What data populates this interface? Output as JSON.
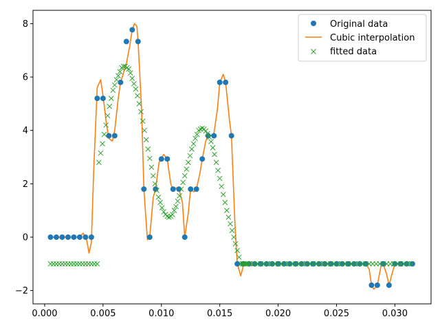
{
  "chart_data": {
    "type": "scatter",
    "title": "",
    "xlabel": "",
    "ylabel": "",
    "xlim": [
      -0.001,
      0.0331
    ],
    "ylim": [
      -2.5,
      8.5
    ],
    "xticks": [
      0.0,
      0.005,
      0.01,
      0.015,
      0.02,
      0.025,
      0.03
    ],
    "xtick_labels": [
      "0.000",
      "0.005",
      "0.010",
      "0.015",
      "0.020",
      "0.025",
      "0.030"
    ],
    "yticks": [
      -2,
      0,
      2,
      4,
      6,
      8
    ],
    "ytick_labels": [
      "−2",
      "0",
      "2",
      "4",
      "6",
      "8"
    ],
    "grid": false,
    "legend_position": "top-right",
    "colors": {
      "original": "#1f77b4",
      "interp": "#ff7f0e",
      "fitted": "#2ca02c"
    },
    "series": [
      {
        "name": "Original data",
        "marker": "circle",
        "x": [
          0.0005,
          0.001,
          0.0015,
          0.002,
          0.0025,
          0.003,
          0.0035,
          0.004,
          0.0045,
          0.005,
          0.0055,
          0.006,
          0.0065,
          0.007,
          0.0075,
          0.008,
          0.0085,
          0.009,
          0.0095,
          0.01,
          0.0105,
          0.011,
          0.0115,
          0.012,
          0.0125,
          0.013,
          0.0135,
          0.014,
          0.0145,
          0.015,
          0.0155,
          0.016,
          0.0165,
          0.017,
          0.0175,
          0.018,
          0.0185,
          0.019,
          0.0195,
          0.02,
          0.0205,
          0.021,
          0.0215,
          0.022,
          0.0225,
          0.023,
          0.0235,
          0.024,
          0.0245,
          0.025,
          0.0255,
          0.026,
          0.0265,
          0.027,
          0.0275,
          0.028,
          0.0285,
          0.029,
          0.0295,
          0.03,
          0.0305,
          0.031,
          0.0315
        ],
        "y": [
          0,
          0,
          0,
          0,
          0,
          0,
          0,
          0,
          5.2,
          5.2,
          3.8,
          3.8,
          5.8,
          7.33,
          7.77,
          7.33,
          1.8,
          0,
          1.8,
          2.93,
          2.93,
          1.8,
          1.8,
          0,
          1.8,
          1.8,
          2.93,
          3.8,
          3.8,
          5.8,
          5.8,
          3.8,
          -1,
          -1,
          -1,
          -1,
          -1,
          -1,
          -1,
          -1,
          -1,
          -1,
          -1,
          -1,
          -1,
          -1,
          -1,
          -1,
          -1,
          -1,
          -1,
          -1,
          -1,
          -1,
          -1,
          -1.8,
          -1.8,
          -1,
          -1.8,
          -1,
          -1,
          -1,
          -1
        ]
      },
      {
        "name": "Cubic interpolation",
        "marker": "line",
        "x": [
          0.0005,
          0.001,
          0.0015,
          0.002,
          0.0025,
          0.003,
          0.0033,
          0.0036,
          0.0038,
          0.004,
          0.0042,
          0.0045,
          0.0048,
          0.005,
          0.0053,
          0.0055,
          0.0058,
          0.006,
          0.0063,
          0.0065,
          0.007,
          0.0073,
          0.0075,
          0.0077,
          0.0079,
          0.008,
          0.0083,
          0.0085,
          0.0088,
          0.009,
          0.0093,
          0.0095,
          0.0098,
          0.01,
          0.0102,
          0.0105,
          0.0108,
          0.011,
          0.0113,
          0.0115,
          0.0118,
          0.012,
          0.0123,
          0.0125,
          0.0128,
          0.013,
          0.0133,
          0.0135,
          0.0138,
          0.014,
          0.0143,
          0.0145,
          0.0148,
          0.015,
          0.0153,
          0.0155,
          0.0158,
          0.016,
          0.0163,
          0.0165,
          0.0168,
          0.017,
          0.0173,
          0.0175,
          0.018,
          0.0275,
          0.0278,
          0.028,
          0.0282,
          0.0285,
          0.0288,
          0.029,
          0.0293,
          0.0295,
          0.0298,
          0.03,
          0.0315
        ],
        "y": [
          0,
          0,
          0,
          0,
          0,
          0,
          0.15,
          -0.1,
          -0.6,
          -0.2,
          2.5,
          5.6,
          5.9,
          5.3,
          4.2,
          3.7,
          3.6,
          4.0,
          5.2,
          5.8,
          6.5,
          7.2,
          7.77,
          8.0,
          7.9,
          7.33,
          4.8,
          1.8,
          -0.1,
          0.0,
          1.5,
          1.8,
          2.8,
          2.95,
          3.1,
          2.93,
          2.0,
          1.8,
          1.85,
          1.8,
          1.3,
          0.0,
          0.9,
          1.8,
          1.7,
          1.8,
          2.4,
          2.93,
          3.6,
          3.8,
          3.8,
          3.9,
          4.8,
          5.8,
          6.1,
          5.8,
          4.5,
          3.8,
          0.5,
          -1.0,
          -1.45,
          -1.1,
          -0.95,
          -1.0,
          -1.0,
          -1.0,
          -1.2,
          -1.8,
          -1.95,
          -1.8,
          -1.1,
          -1.0,
          -1.4,
          -1.8,
          -1.3,
          -1.0,
          -1.0
        ]
      },
      {
        "name": "fitted data",
        "marker": "x",
        "x": [
          0.0005,
          0.00075,
          0.001,
          0.00125,
          0.0015,
          0.00175,
          0.002,
          0.00225,
          0.0025,
          0.00275,
          0.003,
          0.00325,
          0.0035,
          0.00375,
          0.004,
          0.00425,
          0.0045,
          0.00465,
          0.0048,
          0.00495,
          0.0051,
          0.00525,
          0.0054,
          0.00555,
          0.0057,
          0.00585,
          0.006,
          0.00615,
          0.0063,
          0.00645,
          0.0066,
          0.00675,
          0.0069,
          0.00705,
          0.0072,
          0.00735,
          0.0075,
          0.00765,
          0.0078,
          0.00795,
          0.0081,
          0.00825,
          0.0084,
          0.00855,
          0.0087,
          0.00885,
          0.009,
          0.00915,
          0.0093,
          0.00945,
          0.0096,
          0.00975,
          0.0099,
          0.01005,
          0.0102,
          0.01035,
          0.0105,
          0.01065,
          0.0108,
          0.01095,
          0.0111,
          0.01125,
          0.0114,
          0.01155,
          0.0117,
          0.01185,
          0.012,
          0.01215,
          0.0123,
          0.01245,
          0.0126,
          0.01275,
          0.0129,
          0.01305,
          0.0132,
          0.01335,
          0.0135,
          0.01365,
          0.0138,
          0.01395,
          0.0141,
          0.01425,
          0.0144,
          0.01455,
          0.0147,
          0.01485,
          0.015,
          0.01515,
          0.0153,
          0.01545,
          0.0156,
          0.01575,
          0.0159,
          0.01605,
          0.0162,
          0.01635,
          0.0165,
          0.01665,
          0.0168,
          0.01695,
          0.0171,
          0.01725,
          0.0174,
          0.017,
          0.0173,
          0.0176,
          0.0179,
          0.0182,
          0.0185,
          0.0188,
          0.0191,
          0.0194,
          0.0197,
          0.02,
          0.0203,
          0.0206,
          0.0209,
          0.0212,
          0.0215,
          0.0218,
          0.0221,
          0.0224,
          0.0227,
          0.023,
          0.0233,
          0.0236,
          0.0239,
          0.0242,
          0.0245,
          0.0248,
          0.0251,
          0.0254,
          0.0257,
          0.026,
          0.0263,
          0.0266,
          0.0269,
          0.0272,
          0.0275,
          0.0278,
          0.0281,
          0.0284,
          0.0287,
          0.029,
          0.0293,
          0.0296,
          0.0299,
          0.0302,
          0.0305,
          0.0308,
          0.0311,
          0.0314
        ],
        "y": [
          -1,
          -1,
          -1,
          -1,
          -1,
          -1,
          -1,
          -1,
          -1,
          -1,
          -1,
          -1,
          -1,
          -1,
          -1,
          -1,
          -1,
          2.8,
          3.15,
          3.5,
          3.85,
          4.2,
          4.55,
          4.9,
          5.2,
          5.5,
          5.7,
          5.9,
          6.05,
          6.2,
          6.35,
          6.4,
          6.4,
          6.35,
          6.3,
          6.15,
          5.95,
          5.75,
          5.55,
          5.3,
          5.0,
          4.7,
          4.35,
          4.0,
          3.65,
          3.3,
          2.95,
          2.62,
          2.3,
          2.0,
          1.75,
          1.5,
          1.3,
          1.1,
          0.95,
          0.85,
          0.78,
          0.75,
          0.78,
          0.85,
          1.0,
          1.15,
          1.35,
          1.55,
          1.8,
          2.05,
          2.3,
          2.55,
          2.8,
          3.05,
          3.3,
          3.5,
          3.7,
          3.85,
          4.0,
          4.05,
          4.08,
          4.05,
          3.98,
          3.88,
          3.75,
          3.58,
          3.35,
          3.1,
          2.8,
          2.5,
          2.2,
          1.9,
          1.6,
          1.3,
          1.0,
          0.75,
          0.5,
          0.25,
          0.0,
          -0.25,
          -0.5,
          -0.75,
          -1.0,
          -1.0,
          -1.0,
          -1.0,
          -1.0,
          -1.0,
          -1.0,
          -1.0,
          -1.0,
          -1.0,
          -1.0,
          -1.0,
          -1.0,
          -1.0,
          -1.0,
          -1.0,
          -1.0,
          -1.0,
          -1.0,
          -1.0,
          -1.0,
          -1.0,
          -1.0,
          -1.0,
          -1.0,
          -1.0,
          -1.0,
          -1.0,
          -1.0,
          -1.0,
          -1.0,
          -1.0,
          -1.0,
          -1.0,
          -1.0,
          -1.0,
          -1.0,
          -1.0,
          -1.0,
          -1.0,
          -1.0,
          -1.0,
          -1.0,
          -1.0,
          -1.0,
          -1.0,
          -1.0,
          -1.0,
          -1.0,
          -1.0,
          -1.0,
          -1.0,
          -1.0,
          -1.0
        ]
      }
    ]
  },
  "legend": {
    "items": [
      "Original data",
      "Cubic interpolation",
      "fitted data"
    ]
  }
}
